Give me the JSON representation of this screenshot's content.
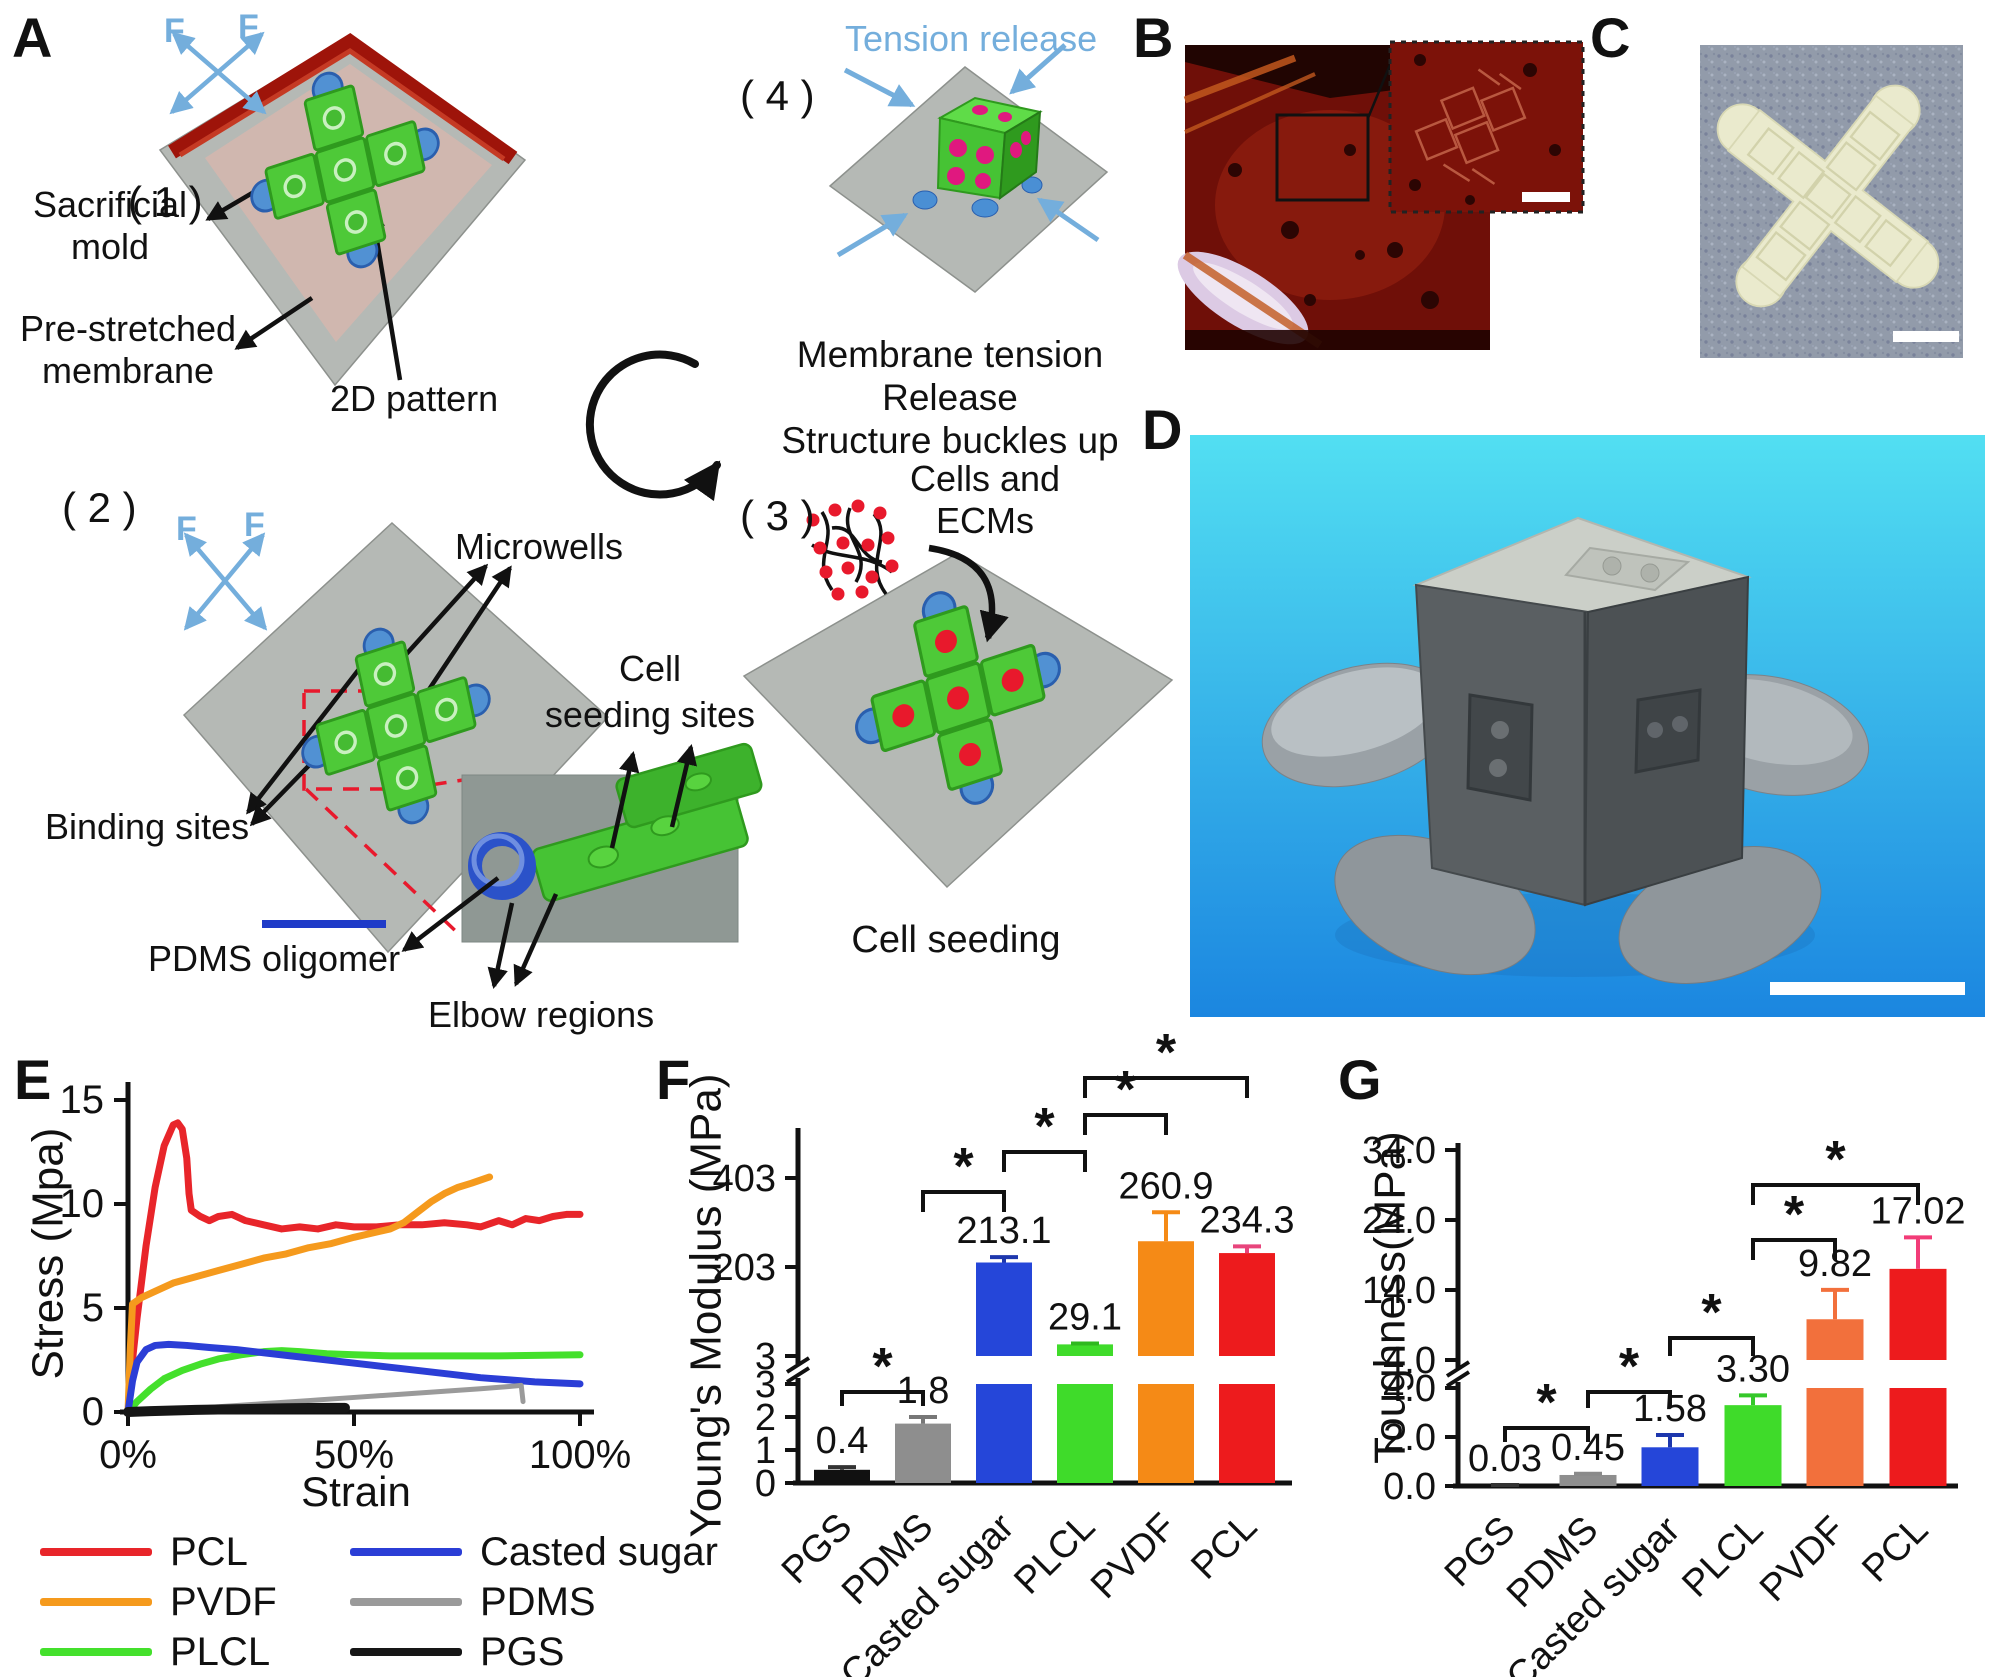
{
  "panel_letters": {
    "a": "A",
    "b": "B",
    "c": "C",
    "d": "D",
    "e": "E",
    "f": "F",
    "g": "G"
  },
  "panel_a": {
    "step_labels": [
      "( 1 )",
      "( 2 )",
      "( 3 )",
      "( 4 )"
    ],
    "force_label": "F",
    "sacrificial_mold": [
      "Sacrificial",
      "mold"
    ],
    "pre_stretched": [
      "Pre-stretched",
      "membrane"
    ],
    "pattern_2d": "2D pattern",
    "tension_release": "Tension release",
    "membrane_tension": [
      "Membrane tension Release",
      "Structure buckles up"
    ],
    "microwells": "Microwells",
    "binding_sites": "Binding sites",
    "cell_seeding_sites": [
      "Cell",
      "seeding sites"
    ],
    "pdms_oligomer": "PDMS oligomer",
    "elbow_regions": "Elbow regions",
    "cells_and_ecms": [
      "Cells and",
      "ECMs"
    ],
    "cell_seeding": "Cell seeding"
  },
  "colors": {
    "force_arrow": "#74aedc",
    "membrane": "#b5b9b5",
    "mold_red": "#9e140a",
    "cross_green": "#4ec938",
    "binding_blue": "#5191d3",
    "cell_dot_red": "#e8192c",
    "cube_pink": "#e0187f",
    "pdms_oligomer_blue": "#1f3bc8",
    "red_dashed_box": "#e8192c",
    "scale_bar": "#ffffff"
  },
  "chart_data": [
    {
      "id": "stress_strain",
      "type": "line",
      "title": "",
      "xlabel": "Strain",
      "ylabel": "Stress (Mpa)",
      "xlim": [
        0,
        100
      ],
      "ylim": [
        0,
        15
      ],
      "grid": false,
      "legend_position": "below",
      "xticks": [
        {
          "v": 0,
          "label": "0%"
        },
        {
          "v": 50,
          "label": "50%"
        },
        {
          "v": 100,
          "label": "100%"
        }
      ],
      "yticks": [
        {
          "v": 0,
          "label": "0"
        },
        {
          "v": 5,
          "label": "5"
        },
        {
          "v": 10,
          "label": "10"
        },
        {
          "v": 15,
          "label": "15"
        }
      ],
      "series": [
        {
          "name": "PCL",
          "color": "#e8252a",
          "width": 7,
          "points": [
            [
              0,
              0
            ],
            [
              0.5,
              1
            ],
            [
              1,
              2.5
            ],
            [
              2,
              4.5
            ],
            [
              4,
              8
            ],
            [
              6,
              10.8
            ],
            [
              8,
              12.8
            ],
            [
              10,
              13.8
            ],
            [
              11,
              13.9
            ],
            [
              12,
              13.6
            ],
            [
              13,
              12.2
            ],
            [
              13.5,
              10.5
            ],
            [
              14,
              9.7
            ],
            [
              16,
              9.4
            ],
            [
              18,
              9.2
            ],
            [
              20,
              9.4
            ],
            [
              23,
              9.5
            ],
            [
              26,
              9.2
            ],
            [
              30,
              9.0
            ],
            [
              34,
              8.8
            ],
            [
              38,
              8.9
            ],
            [
              42,
              8.8
            ],
            [
              46,
              9.0
            ],
            [
              50,
              8.9
            ],
            [
              55,
              8.9
            ],
            [
              60,
              9.0
            ],
            [
              65,
              9.0
            ],
            [
              70,
              9.1
            ],
            [
              75,
              9.0
            ],
            [
              78,
              8.9
            ],
            [
              82,
              9.2
            ],
            [
              85,
              9.0
            ],
            [
              88,
              9.3
            ],
            [
              91,
              9.2
            ],
            [
              94,
              9.4
            ],
            [
              97,
              9.5
            ],
            [
              100,
              9.5
            ]
          ]
        },
        {
          "name": "PVDF",
          "color": "#f59a1d",
          "width": 7,
          "points": [
            [
              0,
              0
            ],
            [
              0.5,
              3
            ],
            [
              1,
              5.2
            ],
            [
              3,
              5.5
            ],
            [
              6,
              5.8
            ],
            [
              10,
              6.2
            ],
            [
              15,
              6.5
            ],
            [
              20,
              6.8
            ],
            [
              25,
              7.1
            ],
            [
              30,
              7.4
            ],
            [
              35,
              7.6
            ],
            [
              40,
              7.9
            ],
            [
              45,
              8.1
            ],
            [
              50,
              8.4
            ],
            [
              54,
              8.6
            ],
            [
              58,
              8.8
            ],
            [
              61,
              9.1
            ],
            [
              64,
              9.6
            ],
            [
              67,
              10.1
            ],
            [
              70,
              10.5
            ],
            [
              73,
              10.8
            ],
            [
              76,
              11.0
            ],
            [
              80,
              11.3
            ]
          ]
        },
        {
          "name": "PLCL",
          "color": "#44e02c",
          "width": 7,
          "points": [
            [
              0,
              0
            ],
            [
              2,
              0.5
            ],
            [
              5,
              1.1
            ],
            [
              8,
              1.6
            ],
            [
              12,
              2.0
            ],
            [
              16,
              2.3
            ],
            [
              20,
              2.55
            ],
            [
              25,
              2.75
            ],
            [
              30,
              2.9
            ],
            [
              34,
              2.95
            ],
            [
              38,
              2.9
            ],
            [
              44,
              2.8
            ],
            [
              50,
              2.75
            ],
            [
              58,
              2.7
            ],
            [
              66,
              2.7
            ],
            [
              74,
              2.7
            ],
            [
              82,
              2.7
            ],
            [
              90,
              2.72
            ],
            [
              100,
              2.75
            ]
          ]
        },
        {
          "name": "Casted sugar",
          "color": "#2b3ed6",
          "width": 7,
          "points": [
            [
              0,
              0
            ],
            [
              1,
              1.5
            ],
            [
              2,
              2.4
            ],
            [
              4,
              3.0
            ],
            [
              6,
              3.2
            ],
            [
              9,
              3.25
            ],
            [
              13,
              3.2
            ],
            [
              18,
              3.1
            ],
            [
              24,
              3.0
            ],
            [
              30,
              2.85
            ],
            [
              36,
              2.7
            ],
            [
              42,
              2.55
            ],
            [
              48,
              2.4
            ],
            [
              54,
              2.25
            ],
            [
              60,
              2.1
            ],
            [
              66,
              1.95
            ],
            [
              72,
              1.8
            ],
            [
              78,
              1.65
            ],
            [
              84,
              1.55
            ],
            [
              90,
              1.45
            ],
            [
              95,
              1.4
            ],
            [
              100,
              1.35
            ]
          ]
        },
        {
          "name": "PDMS",
          "color": "#9a9a9a",
          "width": 5,
          "points": [
            [
              0,
              0
            ],
            [
              10,
              0.1
            ],
            [
              20,
              0.25
            ],
            [
              30,
              0.4
            ],
            [
              40,
              0.55
            ],
            [
              50,
              0.7
            ],
            [
              60,
              0.85
            ],
            [
              70,
              1.0
            ],
            [
              78,
              1.12
            ],
            [
              84,
              1.22
            ],
            [
              87,
              1.28
            ],
            [
              87.4,
              0.5
            ]
          ]
        },
        {
          "name": "PGS",
          "color": "#161616",
          "width": 10,
          "points": [
            [
              0,
              0
            ],
            [
              5,
              0.04
            ],
            [
              10,
              0.07
            ],
            [
              15,
              0.1
            ],
            [
              20,
              0.12
            ],
            [
              25,
              0.14
            ],
            [
              30,
              0.16
            ],
            [
              35,
              0.18
            ],
            [
              40,
              0.19
            ],
            [
              45,
              0.2
            ],
            [
              48,
              0.2
            ]
          ]
        }
      ],
      "legend_columns": [
        [
          0,
          1,
          2
        ],
        [
          3,
          4,
          5
        ]
      ]
    },
    {
      "id": "youngs_modulus",
      "type": "bar",
      "title": "",
      "ylabel": "Young's Modulus (MPa)",
      "categories": [
        "PGS",
        "PDMS",
        "Casted sugar",
        "PLCL",
        "PVDF",
        "PCL"
      ],
      "values": [
        0.4,
        1.8,
        213.1,
        29.1,
        260.9,
        234.3
      ],
      "errors": [
        0.08,
        0.2,
        12,
        2,
        65,
        15
      ],
      "value_labels": [
        "0.4",
        "1.8",
        "213.1",
        "29.1",
        "260.9",
        "234.3"
      ],
      "colors": [
        "#111111",
        "#8e8e8e",
        "#2546d9",
        "#3fdb2a",
        "#f58a16",
        "#ed1b1d"
      ],
      "error_colors": [
        "#333333",
        "#777777",
        "#1d37ad",
        "#2fb81f",
        "#f58a16",
        "#e8457c"
      ],
      "axis_break": {
        "lower_range": [
          0,
          3
        ],
        "upper_range": [
          3,
          403
        ],
        "lower_ticks": [
          {
            "v": 0,
            "label": "0"
          },
          {
            "v": 1,
            "label": "1"
          },
          {
            "v": 2,
            "label": "2"
          },
          {
            "v": 3,
            "label": "3"
          }
        ],
        "upper_ticks": [
          {
            "v": 3,
            "label": "3"
          },
          {
            "v": 203,
            "label": "203"
          },
          {
            "v": 403,
            "label": "403"
          }
        ]
      },
      "significance": [
        {
          "a": 0,
          "b": 1,
          "label": "*"
        },
        {
          "a": 1,
          "b": 2,
          "label": "*"
        },
        {
          "a": 2,
          "b": 3,
          "label": "*"
        },
        {
          "a": 3,
          "b": 4,
          "label": "*"
        },
        {
          "a": 3,
          "b": 5,
          "label": "*"
        }
      ]
    },
    {
      "id": "toughness",
      "type": "bar",
      "title": "",
      "ylabel": "Toughness(MPa)",
      "categories": [
        "PGS",
        "PDMS",
        "Casted sugar",
        "PLCL",
        "PVDF",
        "PCL"
      ],
      "values": [
        0.03,
        0.45,
        1.58,
        3.3,
        9.82,
        17.02
      ],
      "errors": [
        0.01,
        0.05,
        0.5,
        0.4,
        4.2,
        4.5
      ],
      "value_labels": [
        "0.03",
        "0.45",
        "1.58",
        "3.30",
        "9.82",
        "17.02"
      ],
      "colors": [
        "#111111",
        "#8e8e8e",
        "#2546d9",
        "#3fdb2a",
        "#f2703c",
        "#ed1b1d"
      ],
      "error_colors": [
        "#333333",
        "#8a8a8a",
        "#1d37ad",
        "#35c82a",
        "#f2703c",
        "#f23c78"
      ],
      "axis_break": {
        "lower_range": [
          0,
          4
        ],
        "upper_range": [
          4,
          34
        ],
        "lower_ticks": [
          {
            "v": 0,
            "label": "0.0"
          },
          {
            "v": 2,
            "label": "2.0"
          },
          {
            "v": 4,
            "label": "4.0"
          }
        ],
        "upper_ticks": [
          {
            "v": 4,
            "label": "4.0"
          },
          {
            "v": 14,
            "label": "14.0"
          },
          {
            "v": 24,
            "label": "24.0"
          },
          {
            "v": 34,
            "label": "34.0"
          }
        ]
      },
      "significance": [
        {
          "a": 0,
          "b": 1,
          "label": "*"
        },
        {
          "a": 1,
          "b": 2,
          "label": "*"
        },
        {
          "a": 2,
          "b": 3,
          "label": "*"
        },
        {
          "a": 3,
          "b": 4,
          "label": "*"
        },
        {
          "a": 3,
          "b": 5,
          "label": "*"
        }
      ]
    }
  ]
}
